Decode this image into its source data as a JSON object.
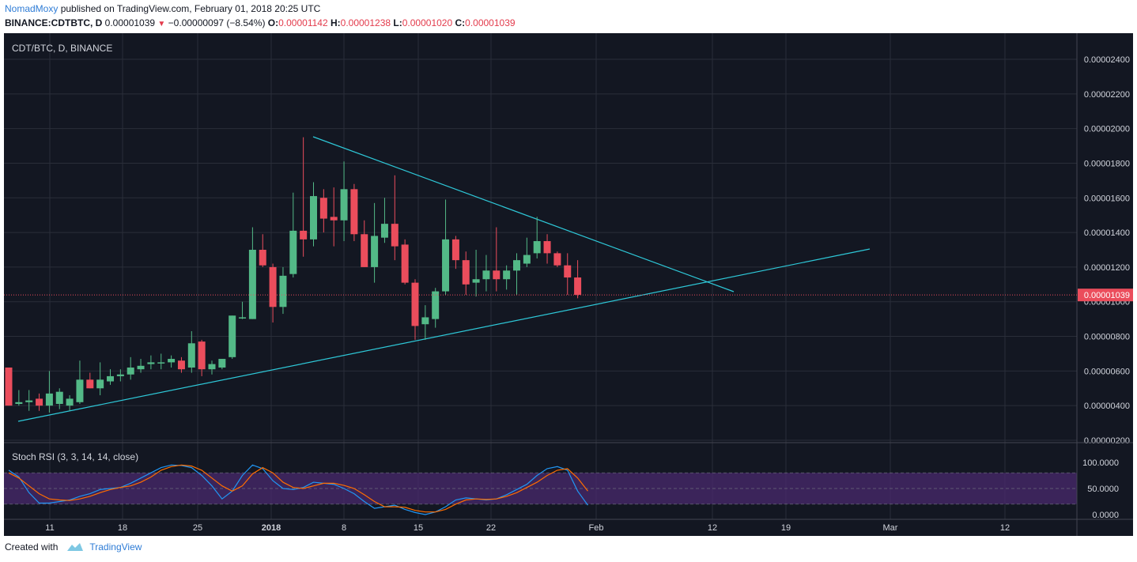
{
  "header": {
    "author": "NomadMoxy",
    "published_text": " published on TradingView.com, February 01, 2018 20:25 UTC",
    "symbol": "BINANCE:CDTBTC, D",
    "last": "0.00001039",
    "change": "−0.00000097 (−8.54%)",
    "o_label": "O:",
    "o": "0.00001142",
    "h_label": "H:",
    "h": "0.00001238",
    "l_label": "L:",
    "l": "0.00001020",
    "c_label": "C:",
    "c": "0.00001039"
  },
  "chart": {
    "pane_title": "CDT/BTC, D, BINANCE",
    "price_label": "0.00001039",
    "indicator_title": "Stoch RSI (3, 3, 14, 14, close)"
  },
  "footer": {
    "created_with": "Created with",
    "brand": "TradingView"
  },
  "colors": {
    "background": "#131722",
    "up": "#53b987",
    "down": "#eb4d5c",
    "trendline": "#2ec8d8",
    "k_line": "#2196f3",
    "d_line": "#ff6d00",
    "rsi_band": "#4a2a6e"
  },
  "chart_data": [
    {
      "type": "candlestick",
      "title": "CDT/BTC, D, BINANCE",
      "ylim": [
        1.9e-06,
        2.5e-06
      ],
      "y_ticks": [
        "0.00000200",
        "0.00000400",
        "0.00000600",
        "0.00000800",
        "0.00001000",
        "0.00001200",
        "0.00001400",
        "0.00001600",
        "0.00001800",
        "0.00002000",
        "0.00002200",
        "0.00002400"
      ],
      "x_ticks": [
        "11",
        "18",
        "25",
        "2018",
        "8",
        "15",
        "22",
        "Feb",
        "12",
        "19",
        "Mar",
        "12"
      ],
      "last_price": 1.039e-05,
      "candles": [
        {
          "o": 6.2e-06,
          "h": 6.2e-06,
          "l": 4e-06,
          "c": 4e-06
        },
        {
          "o": 4.1e-06,
          "h": 4.9e-06,
          "l": 4e-06,
          "c": 4.2e-06
        },
        {
          "o": 4.2e-06,
          "h": 4.9e-06,
          "l": 3.7e-06,
          "c": 4.3e-06
        },
        {
          "o": 4.4e-06,
          "h": 4.7e-06,
          "l": 3.7e-06,
          "c": 4e-06
        },
        {
          "o": 4e-06,
          "h": 6e-06,
          "l": 3.6e-06,
          "c": 4.7e-06
        },
        {
          "o": 4.1e-06,
          "h": 5e-06,
          "l": 3.8e-06,
          "c": 4.8e-06
        },
        {
          "o": 4e-06,
          "h": 4.6e-06,
          "l": 3.7e-06,
          "c": 4.4e-06
        },
        {
          "o": 4.2e-06,
          "h": 6.6e-06,
          "l": 4.1e-06,
          "c": 5.5e-06
        },
        {
          "o": 5.5e-06,
          "h": 5.9e-06,
          "l": 5e-06,
          "c": 5e-06
        },
        {
          "o": 5e-06,
          "h": 6.5e-06,
          "l": 4.6e-06,
          "c": 5.5e-06
        },
        {
          "o": 5.4e-06,
          "h": 6.1e-06,
          "l": 5.2e-06,
          "c": 5.7e-06
        },
        {
          "o": 5.7e-06,
          "h": 6.1e-06,
          "l": 5.4e-06,
          "c": 5.8e-06
        },
        {
          "o": 5.8e-06,
          "h": 6.8e-06,
          "l": 5.5e-06,
          "c": 6.2e-06
        },
        {
          "o": 6.1e-06,
          "h": 6.7e-06,
          "l": 5.9e-06,
          "c": 6.3e-06
        },
        {
          "o": 6.4e-06,
          "h": 6.9e-06,
          "l": 6.1e-06,
          "c": 6.5e-06
        },
        {
          "o": 6.5e-06,
          "h": 7e-06,
          "l": 6.1e-06,
          "c": 6.5e-06
        },
        {
          "o": 6.5e-06,
          "h": 6.9e-06,
          "l": 6.2e-06,
          "c": 6.7e-06
        },
        {
          "o": 6.6e-06,
          "h": 6.8e-06,
          "l": 5.9e-06,
          "c": 6.1e-06
        },
        {
          "o": 6.2e-06,
          "h": 8.3e-06,
          "l": 5.9e-06,
          "c": 7.6e-06
        },
        {
          "o": 7.7e-06,
          "h": 7.8e-06,
          "l": 5.7e-06,
          "c": 6.1e-06
        },
        {
          "o": 6.1e-06,
          "h": 6.6e-06,
          "l": 5.8e-06,
          "c": 6.4e-06
        },
        {
          "o": 6.2e-06,
          "h": 6.7e-06,
          "l": 6.1e-06,
          "c": 6.7e-06
        },
        {
          "o": 6.8e-06,
          "h": 9.2e-06,
          "l": 6.7e-06,
          "c": 9.2e-06
        },
        {
          "o": 9.1e-06,
          "h": 1e-05,
          "l": 9e-06,
          "c": 9.1e-06
        },
        {
          "o": 9e-06,
          "h": 1.43e-05,
          "l": 9e-06,
          "c": 1.3e-05
        },
        {
          "o": 1.3e-05,
          "h": 1.39e-05,
          "l": 1.2e-05,
          "c": 1.21e-05
        },
        {
          "o": 1.2e-05,
          "h": 1.22e-05,
          "l": 8.8e-06,
          "c": 9.7e-06
        },
        {
          "o": 9.7e-06,
          "h": 1.2e-05,
          "l": 9.3e-06,
          "c": 1.15e-05
        },
        {
          "o": 1.16e-05,
          "h": 1.63e-05,
          "l": 1.14e-05,
          "c": 1.41e-05
        },
        {
          "o": 1.41e-05,
          "h": 1.95e-05,
          "l": 1.26e-05,
          "c": 1.36e-05
        },
        {
          "o": 1.36e-05,
          "h": 1.69e-05,
          "l": 1.32e-05,
          "c": 1.61e-05
        },
        {
          "o": 1.6e-05,
          "h": 1.65e-05,
          "l": 1.4e-05,
          "c": 1.48e-05
        },
        {
          "o": 1.49e-05,
          "h": 1.66e-05,
          "l": 1.32e-05,
          "c": 1.47e-05
        },
        {
          "o": 1.47e-05,
          "h": 1.81e-05,
          "l": 1.35e-05,
          "c": 1.65e-05
        },
        {
          "o": 1.65e-05,
          "h": 1.68e-05,
          "l": 1.35e-05,
          "c": 1.39e-05
        },
        {
          "o": 1.39e-05,
          "h": 1.47e-05,
          "l": 1.2e-05,
          "c": 1.2e-05
        },
        {
          "o": 1.2e-05,
          "h": 1.57e-05,
          "l": 1.11e-05,
          "c": 1.38e-05
        },
        {
          "o": 1.37e-05,
          "h": 1.6e-05,
          "l": 1.34e-05,
          "c": 1.45e-05
        },
        {
          "o": 1.45e-05,
          "h": 1.73e-05,
          "l": 1.24e-05,
          "c": 1.32e-05
        },
        {
          "o": 1.33e-05,
          "h": 1.36e-05,
          "l": 1.1e-05,
          "c": 1.11e-05
        },
        {
          "o": 1.11e-05,
          "h": 1.13e-05,
          "l": 7.8e-06,
          "c": 8.6e-06
        },
        {
          "o": 8.7e-06,
          "h": 9.8e-06,
          "l": 7.8e-06,
          "c": 9.1e-06
        },
        {
          "o": 9e-06,
          "h": 1.08e-05,
          "l": 8.5e-06,
          "c": 1.06e-05
        },
        {
          "o": 1.06e-05,
          "h": 1.59e-05,
          "l": 1.04e-05,
          "c": 1.36e-05
        },
        {
          "o": 1.36e-05,
          "h": 1.38e-05,
          "l": 1.19e-05,
          "c": 1.24e-05
        },
        {
          "o": 1.24e-05,
          "h": 1.29e-05,
          "l": 1.04e-05,
          "c": 1.1e-05
        },
        {
          "o": 1.11e-05,
          "h": 1.3e-05,
          "l": 1.03e-05,
          "c": 1.13e-05
        },
        {
          "o": 1.13e-05,
          "h": 1.27e-05,
          "l": 1.06e-05,
          "c": 1.18e-05
        },
        {
          "o": 1.18e-05,
          "h": 1.43e-05,
          "l": 1.06e-05,
          "c": 1.13e-05
        },
        {
          "o": 1.13e-05,
          "h": 1.21e-05,
          "l": 1.07e-05,
          "c": 1.18e-05
        },
        {
          "o": 1.18e-05,
          "h": 1.28e-05,
          "l": 1.04e-05,
          "c": 1.24e-05
        },
        {
          "o": 1.22e-05,
          "h": 1.37e-05,
          "l": 1.2e-05,
          "c": 1.27e-05
        },
        {
          "o": 1.28e-05,
          "h": 1.49e-05,
          "l": 1.25e-05,
          "c": 1.35e-05
        },
        {
          "o": 1.35e-05,
          "h": 1.39e-05,
          "l": 1.22e-05,
          "c": 1.28e-05
        },
        {
          "o": 1.28e-05,
          "h": 1.29e-05,
          "l": 1.2e-05,
          "c": 1.21e-05
        },
        {
          "o": 1.21e-05,
          "h": 1.28e-05,
          "l": 1.04e-05,
          "c": 1.14e-05
        },
        {
          "o": 1.14e-05,
          "h": 1.24e-05,
          "l": 1.02e-05,
          "c": 1.04e-05
        }
      ]
    },
    {
      "type": "line",
      "title": "Stoch RSI (3, 3, 14, 14, close)",
      "ylim": [
        0,
        100
      ],
      "y_ticks": [
        "0.0000",
        "50.0000",
        "100.0000"
      ],
      "band": [
        20,
        80
      ],
      "series": [
        {
          "values": [
            85,
            72,
            42,
            22,
            22,
            25,
            28,
            35,
            40,
            48,
            50,
            52,
            60,
            70,
            80,
            90,
            95,
            94,
            90,
            75,
            55,
            30,
            45,
            75,
            95,
            88,
            65,
            50,
            48,
            52,
            62,
            60,
            58,
            50,
            40,
            25,
            12,
            15,
            18,
            10,
            4,
            0,
            5,
            15,
            28,
            32,
            30,
            28,
            30,
            38,
            48,
            58,
            75,
            88,
            92,
            85,
            45,
            18
          ]
        },
        {
          "values": [
            80,
            70,
            55,
            40,
            30,
            28,
            27,
            30,
            35,
            42,
            48,
            52,
            55,
            62,
            72,
            85,
            92,
            95,
            93,
            85,
            70,
            55,
            45,
            55,
            78,
            90,
            80,
            62,
            52,
            50,
            55,
            60,
            60,
            56,
            50,
            38,
            25,
            15,
            15,
            14,
            8,
            5,
            5,
            10,
            20,
            28,
            30,
            29,
            30,
            35,
            42,
            52,
            62,
            75,
            85,
            88,
            70,
            45
          ]
        }
      ]
    }
  ]
}
